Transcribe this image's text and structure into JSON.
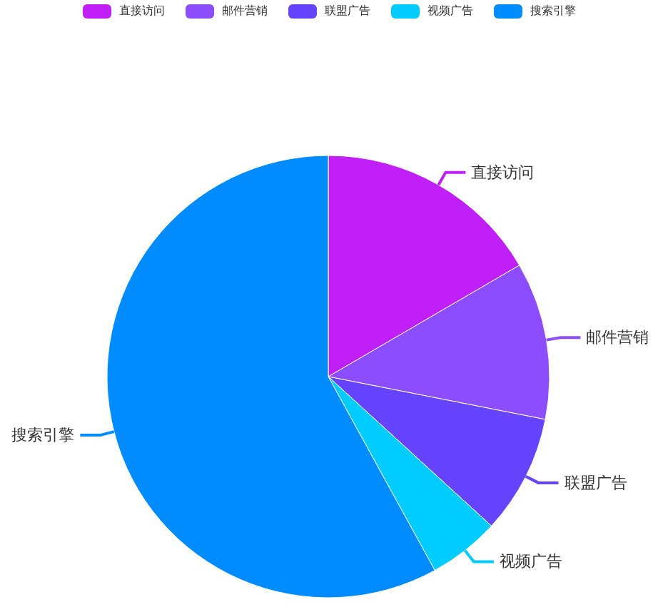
{
  "chart_data": {
    "type": "pie",
    "categories": [
      "直接访问",
      "邮件营销",
      "联盟广告",
      "视频广告",
      "搜索引擎"
    ],
    "values": [
      16.6,
      11.5,
      8.7,
      5.2,
      58.0
    ],
    "colors": [
      "#c11ff7",
      "#8c4dff",
      "#6644ff",
      "#00ccff",
      "#008cff"
    ],
    "legend": "top"
  }
}
